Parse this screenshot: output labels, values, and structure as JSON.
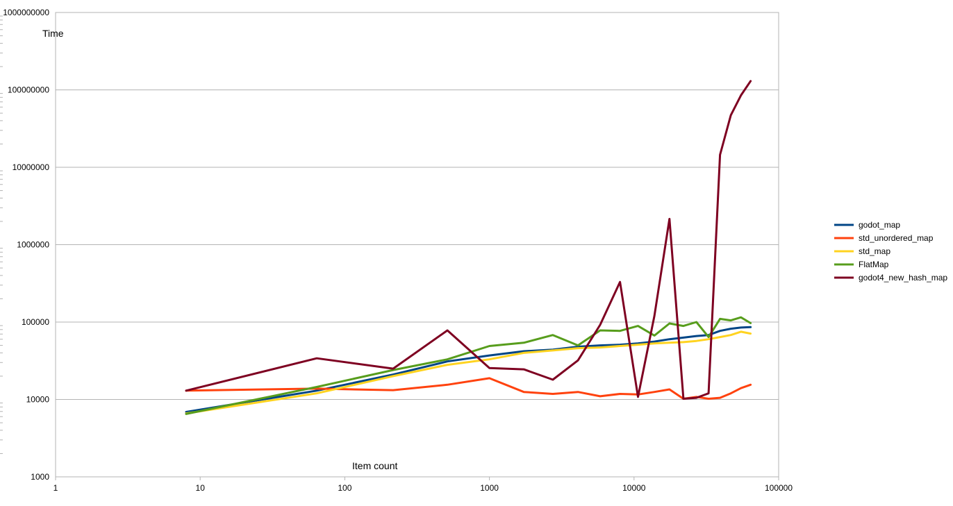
{
  "chart_data": {
    "type": "line",
    "title": "",
    "xlabel": "Item count",
    "ylabel": "Time",
    "x_scale": "log",
    "y_scale": "log",
    "xlim": [
      1,
      100000
    ],
    "ylim": [
      1000,
      1000000000
    ],
    "x_ticks": [
      "1",
      "10",
      "100",
      "1000",
      "10000",
      "100000"
    ],
    "y_ticks": [
      "1000",
      "10000",
      "100000",
      "1000000",
      "10000000",
      "100000000",
      "1000000000"
    ],
    "grid": "horizontal",
    "legend_position": "right",
    "x": [
      8,
      64,
      216,
      512,
      1000,
      1728,
      2744,
      4096,
      5832,
      8000,
      10648,
      13824,
      17576,
      21952,
      27000,
      32768,
      39304,
      46656,
      54872,
      64000
    ],
    "series": [
      {
        "name": "godot_map",
        "color": "#004586",
        "values": [
          6900,
          13000,
          21000,
          31000,
          37000,
          42000,
          44000,
          48000,
          50000,
          51000,
          53000,
          56000,
          60000,
          63000,
          66000,
          68000,
          77000,
          82000,
          85000,
          86000
        ]
      },
      {
        "name": "std_unordered_map",
        "color": "#ff420e",
        "values": [
          13000,
          13800,
          13200,
          15500,
          18800,
          12500,
          11800,
          12500,
          11000,
          11800,
          11600,
          12500,
          13500,
          10200,
          10800,
          10200,
          10500,
          12000,
          14000,
          15500
        ]
      },
      {
        "name": "std_map",
        "color": "#ffd320",
        "values": [
          6600,
          12000,
          20000,
          28000,
          33000,
          40000,
          43000,
          46000,
          47000,
          49000,
          51000,
          53000,
          54000,
          55000,
          57000,
          60000,
          64000,
          68000,
          75000,
          71000
        ]
      },
      {
        "name": "FlatMap",
        "color": "#579d1c",
        "values": [
          6500,
          14500,
          24000,
          33000,
          49000,
          54000,
          68000,
          50000,
          78000,
          77000,
          89000,
          67000,
          96000,
          89000,
          100000,
          64000,
          110000,
          105000,
          115000,
          97000
        ]
      },
      {
        "name": "godot4_new_hash_map",
        "color": "#7e0021",
        "values": [
          13000,
          34000,
          25000,
          78000,
          25500,
          24500,
          18000,
          32000,
          92000,
          330000,
          10800,
          120000,
          2150000,
          10200,
          10500,
          12000,
          14500000,
          47000000,
          85000000,
          130000000
        ]
      }
    ]
  }
}
